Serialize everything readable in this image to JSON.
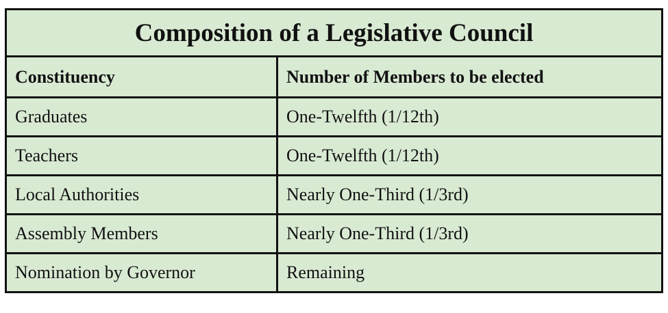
{
  "title": "Composition of a Legislative Council",
  "headers": [
    "Constituency",
    "Number of Members to be elected"
  ],
  "rows": [
    [
      "Graduates",
      "One-Twelfth (1/12th)"
    ],
    [
      "Teachers",
      "One-Twelfth (1/12th)"
    ],
    [
      "Local Authorities",
      "Nearly One-Third (1/3rd)"
    ],
    [
      "Assembly Members",
      "Nearly One-Third (1/3rd)"
    ],
    [
      "Nomination by Governor",
      "Remaining"
    ]
  ],
  "colors": {
    "background": "#d9ead3",
    "border": "#111111"
  }
}
